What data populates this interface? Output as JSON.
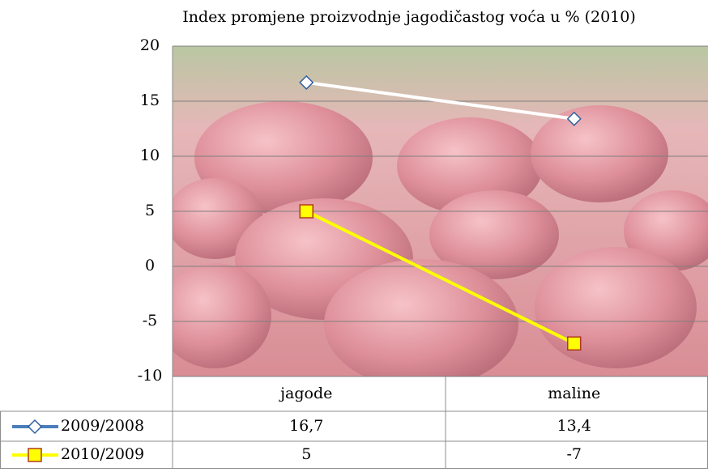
{
  "chart_data": {
    "type": "line",
    "title": "Index promjene proizvodnje jagodičastog voća u % (2010)",
    "categories": [
      "jagode",
      "maline"
    ],
    "series": [
      {
        "name": "2009/2008",
        "color": "#ffffff",
        "legend_color": "#4a7ebb",
        "marker": "diamond",
        "marker_fill": "#ffffff",
        "marker_edge": "#2f5f9f",
        "values": [
          16.7,
          13.4
        ],
        "value_labels": [
          "16,7",
          "13,4"
        ]
      },
      {
        "name": "2010/2009",
        "color": "#ffff00",
        "legend_color": "#ffff00",
        "marker": "square",
        "marker_fill": "#ffff00",
        "marker_edge": "#b03a1a",
        "values": [
          5,
          -7
        ]
      }
    ],
    "ylim": [
      -10,
      20
    ],
    "yticks": [
      -10,
      -5,
      0,
      5,
      10,
      15,
      20
    ],
    "grid": true,
    "data_table": true
  }
}
